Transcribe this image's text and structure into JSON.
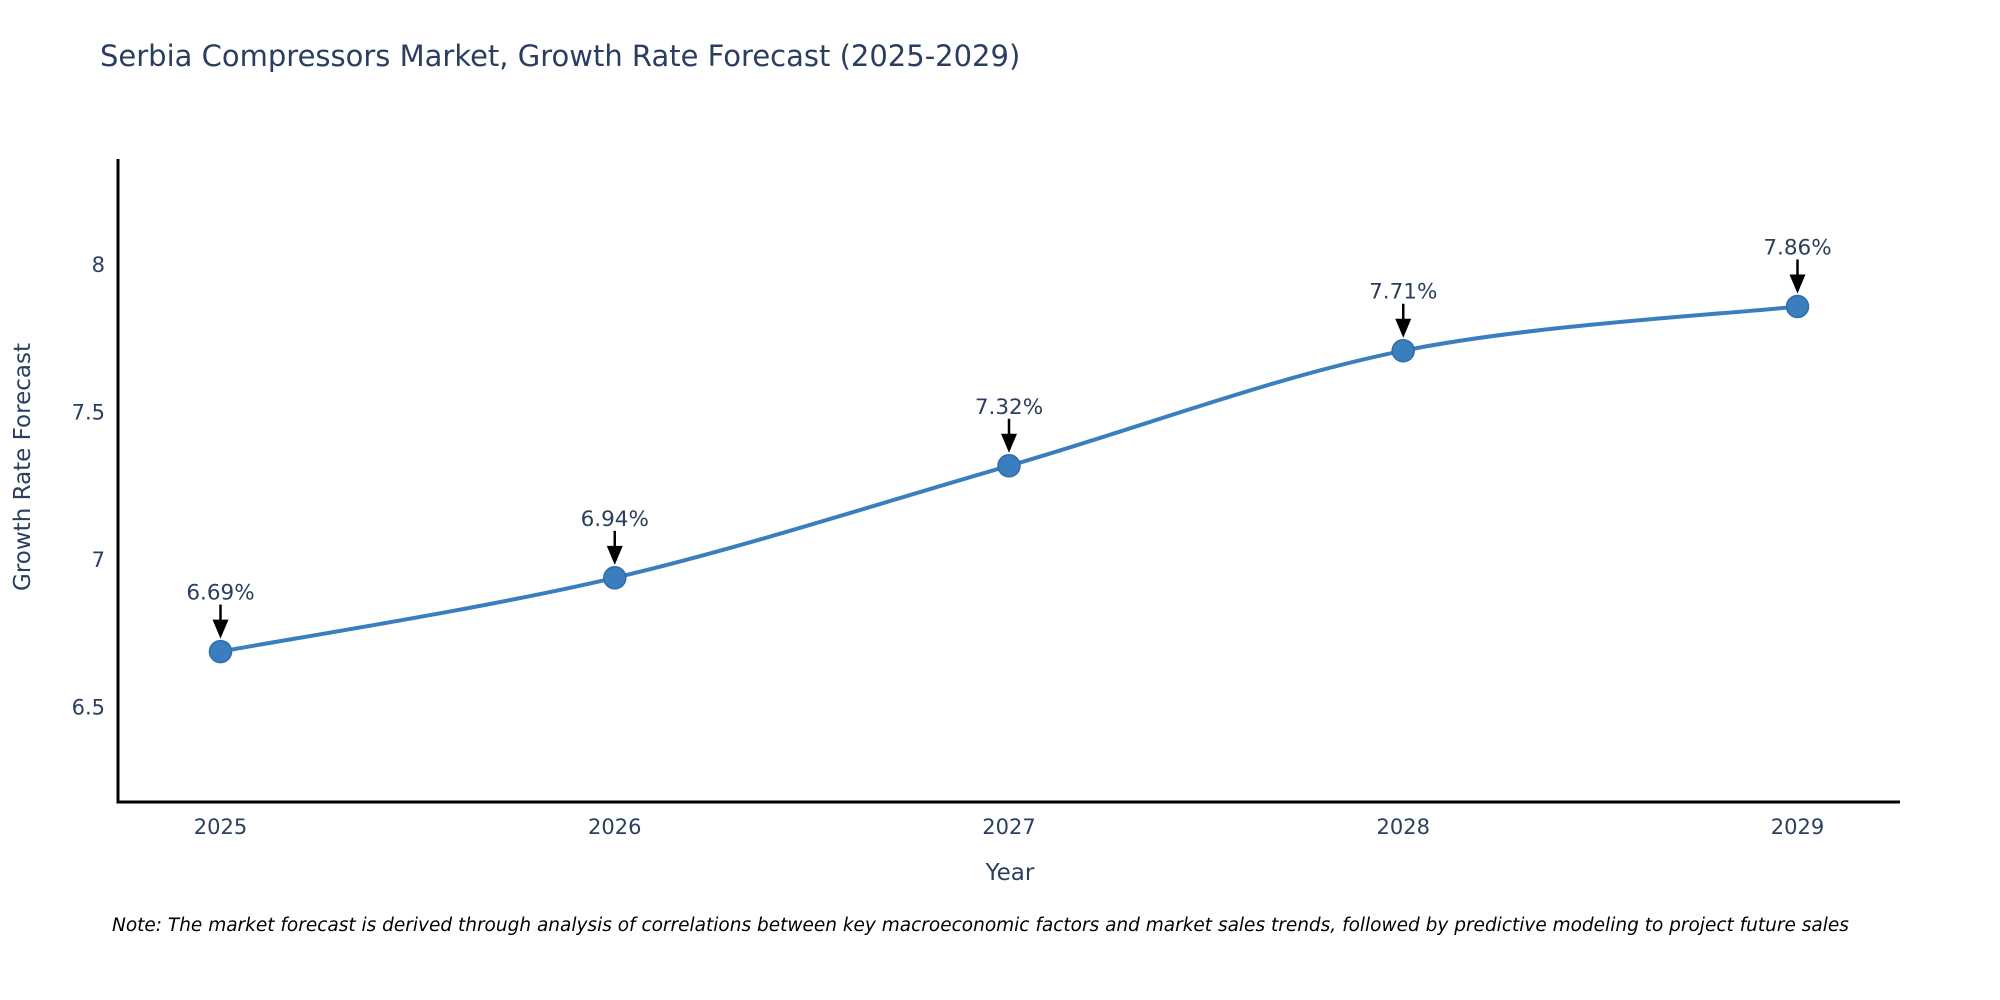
{
  "page": {
    "note": "Note: The market forecast is derived through analysis of correlations between key macroeconomic factors and market sales trends, followed by predictive modeling to project future sales"
  },
  "chart_data": {
    "type": "line",
    "title": "Serbia Compressors Market, Growth Rate Forecast (2025-2029)",
    "xlabel": "Year",
    "ylabel": "Growth Rate Forecast",
    "x": [
      2025,
      2026,
      2027,
      2028,
      2029
    ],
    "values": [
      6.69,
      6.94,
      7.32,
      7.71,
      7.86
    ],
    "point_labels": [
      "6.69%",
      "6.94%",
      "7.32%",
      "7.71%",
      "7.86%"
    ],
    "x_ticks": [
      "2025",
      "2026",
      "2027",
      "2028",
      "2029"
    ],
    "y_ticks": [
      6.5,
      7,
      7.5,
      8
    ],
    "xlim": [
      2024.74,
      2029.26
    ],
    "ylim": [
      6.18,
      8.36
    ],
    "grid": false,
    "legend": "none",
    "smooth": true,
    "line_color": "#3a7ebf",
    "line_width": 4,
    "marker_color": "#3a7ebf",
    "marker_edge_color": "#2f6da8",
    "arrow_color": "#000000",
    "axis_color": "#000000",
    "text_color": "#2a3f5f"
  }
}
